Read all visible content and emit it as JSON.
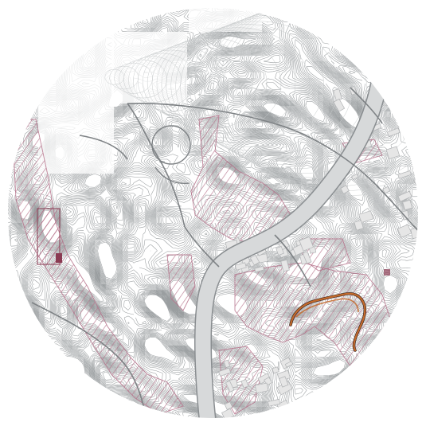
{
  "map": {
    "style": "topographic contour map, circular crop",
    "visible_text": [],
    "colors": {
      "background": "#ffffff",
      "contour": "#8f9396",
      "contour_light": "#c9cccd",
      "road": "#7e8285",
      "river_fill": "#d7d9da",
      "river_edge": "#8a8e91",
      "building_fill": "#e6e6e6",
      "building_edge": "#b1b3b5",
      "hatch_pink": "#b6718a",
      "highlight_orange": "#c46a2c",
      "dark_block": "#8a3a52"
    },
    "features": [
      "contour-lines",
      "blank-tiles",
      "river-channel",
      "roads",
      "roundabout",
      "buildings",
      "hatched-zones",
      "highlighted-trail"
    ]
  }
}
